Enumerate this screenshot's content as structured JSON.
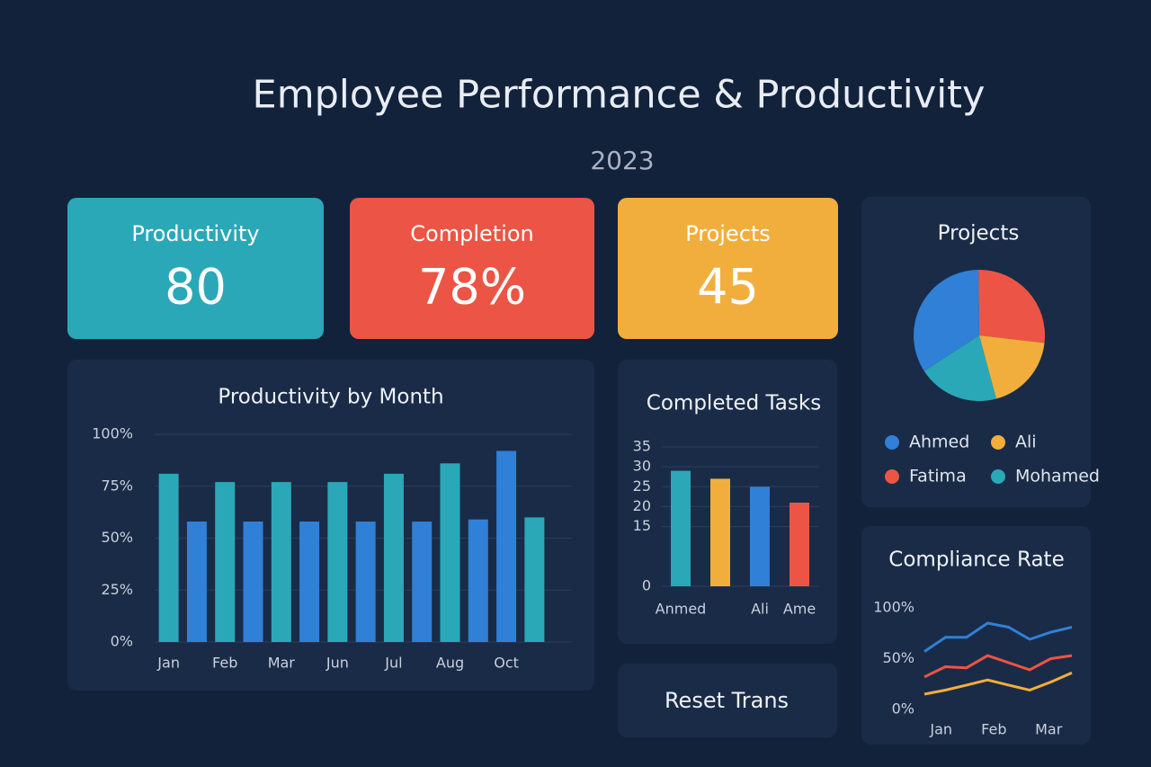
{
  "header": {
    "title": "Employee Performance & Productivity",
    "subtitle": "2023"
  },
  "kpis": [
    {
      "label": "Productivity",
      "value": "80",
      "color": "#2aa8b8"
    },
    {
      "label": "Completion",
      "value": "78%",
      "color": "#ec5545"
    },
    {
      "label": "Projects",
      "value": "45",
      "color": "#f2ae3c"
    }
  ],
  "panel": {
    "label": "Reset Trans"
  },
  "chart_data": [
    {
      "type": "bar",
      "title": "Productivity by Month",
      "categories": [
        "Jan",
        null,
        "Feb",
        null,
        "Mar",
        null,
        "Jun",
        null,
        "Jul",
        null,
        "Aug",
        null,
        "Oct",
        null
      ],
      "values": [
        81,
        58,
        77,
        58,
        77,
        58,
        77,
        58,
        81,
        58,
        86,
        59,
        92,
        60
      ],
      "colors": [
        "#2aa8b8",
        "#2f80d6",
        "#2aa8b8",
        "#2f80d6",
        "#2aa8b8",
        "#2f80d6",
        "#2aa8b8",
        "#2f80d6",
        "#2aa8b8",
        "#2f80d6",
        "#2aa8b8",
        "#2f80d6",
        "#2f80d6",
        "#2aa8b8"
      ],
      "ylim": [
        0,
        100
      ],
      "yticks": [
        {
          "value": 0,
          "label": "0%"
        },
        {
          "value": 25,
          "label": "25%"
        },
        {
          "value": 50,
          "label": "50%"
        },
        {
          "value": 75,
          "label": "75%"
        },
        {
          "value": 100,
          "label": "100%"
        }
      ],
      "grid": true
    },
    {
      "type": "bar",
      "title": "Completed Tasks",
      "categories": [
        "Anmed",
        null,
        "Ali",
        "Ame"
      ],
      "values": [
        29,
        27,
        25,
        21
      ],
      "colors": [
        "#2aa8b8",
        "#f2ae3c",
        "#2f80d6",
        "#ec5545"
      ],
      "ylim": [
        0,
        35
      ],
      "yticks": [
        0,
        15,
        20,
        25,
        30,
        35
      ],
      "grid": true
    },
    {
      "type": "pie",
      "title": "Projects",
      "categories": [
        "Ahmed",
        "Fatima",
        "Ali",
        "Mohamed"
      ],
      "values": [
        34,
        27,
        19,
        20
      ],
      "colors": [
        "#2f80d6",
        "#ec5545",
        "#f2ae3c",
        "#2aa8b8"
      ]
    },
    {
      "type": "line",
      "title": "Compliance Rate",
      "x": [
        0,
        1,
        2,
        3,
        4,
        5,
        6,
        7
      ],
      "xlim": [
        0,
        7
      ],
      "xticks": [
        {
          "value": 0.8,
          "label": "Jan"
        },
        {
          "value": 3.3,
          "label": "Feb"
        },
        {
          "value": 5.9,
          "label": "Mar"
        }
      ],
      "ylim": [
        0,
        100
      ],
      "yticks": [
        {
          "value": 0,
          "label": "0%"
        },
        {
          "value": 50,
          "label": "50%"
        },
        {
          "value": 100,
          "label": "100%"
        }
      ],
      "series": [
        {
          "color": "#2f80d6",
          "values": [
            57,
            71,
            71,
            85,
            81,
            69,
            76,
            81
          ]
        },
        {
          "color": "#ec5545",
          "values": [
            32,
            42,
            41,
            53,
            46,
            39,
            50,
            53
          ]
        },
        {
          "color": "#f2ae3c",
          "values": [
            15,
            19,
            24,
            29,
            24,
            19,
            27,
            36
          ]
        }
      ]
    }
  ]
}
